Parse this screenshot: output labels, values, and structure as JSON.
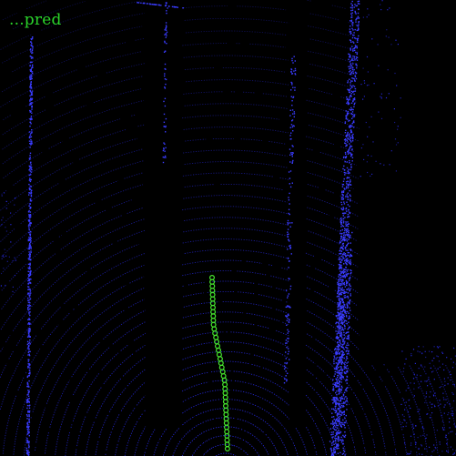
{
  "legend": {
    "label": "...pred"
  },
  "colors": {
    "background": "#000000",
    "lidar_points": "#2a2cf2",
    "lidar_dense": "#3a3cff",
    "prediction_marker": "#47e82f",
    "legend_text": "#2bd52b"
  }
}
